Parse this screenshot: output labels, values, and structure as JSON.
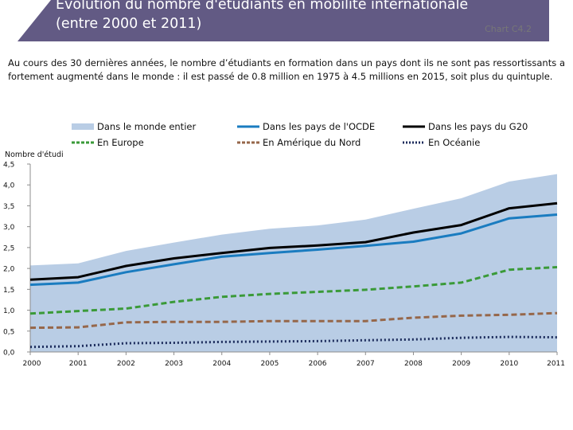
{
  "header": {
    "title": "Évolution du nombre d'étudiants en mobilité internationale (entre 2000 et 2011)",
    "chart_ref": "Chart C4.2",
    "subtitle": "Au cours des 30 dernières années, le nombre d’étudiants en formation dans un pays dont ils ne sont pas ressortissants a fortement augmenté dans le monde : il est passé de 0.8 million en 1975 à 4.5 millions en 2015, soit plus du quintuple."
  },
  "colors": {
    "banner": "#625a84",
    "world_fill": "#b9cde5",
    "oecd": "#1a7cc0",
    "g20": "#000000",
    "europe": "#3a9a38",
    "north_america": "#96674a",
    "oceania": "#1c2c5c"
  },
  "chart_data": {
    "type": "line",
    "title": "Évolution du nombre d'étudiants en mobilité internationale (entre 2000 et 2011)",
    "ylabel": "Nombre d'étudiants (en millions)",
    "ylabel_visible": "Nombre d'étudia",
    "xlabel": "",
    "x": [
      "2000",
      "2001",
      "2002",
      "2003",
      "2004",
      "2005",
      "2006",
      "2007",
      "2008",
      "2009",
      "2010",
      "2011"
    ],
    "yticks": [
      "0,0",
      "0,5",
      "1,0",
      "1,5",
      "2,0",
      "2,5",
      "3,0",
      "3,5",
      "4,0",
      "4,5"
    ],
    "ylim": [
      0,
      4.5
    ],
    "grid": false,
    "legend_position": "top",
    "series": [
      {
        "name": "Dans le monde entier",
        "style": "area",
        "values": [
          2.07,
          2.12,
          2.42,
          2.62,
          2.81,
          2.95,
          3.03,
          3.17,
          3.43,
          3.68,
          4.08,
          4.26
        ]
      },
      {
        "name": "Dans les pays de l'OCDE",
        "style": "solid",
        "values": [
          1.61,
          1.66,
          1.91,
          2.1,
          2.28,
          2.37,
          2.45,
          2.54,
          2.64,
          2.84,
          3.2,
          3.29
        ]
      },
      {
        "name": "Dans les pays du G20",
        "style": "solid",
        "values": [
          1.73,
          1.79,
          2.06,
          2.24,
          2.37,
          2.49,
          2.55,
          2.63,
          2.86,
          3.04,
          3.44,
          3.56
        ]
      },
      {
        "name": "En Europe",
        "style": "dashed",
        "values": [
          0.92,
          0.98,
          1.04,
          1.2,
          1.32,
          1.39,
          1.44,
          1.49,
          1.57,
          1.66,
          1.97,
          2.03
        ]
      },
      {
        "name": "En Amérique du Nord",
        "style": "dashed",
        "values": [
          0.58,
          0.59,
          0.71,
          0.72,
          0.72,
          0.74,
          0.74,
          0.74,
          0.82,
          0.87,
          0.89,
          0.93
        ]
      },
      {
        "name": "En Océanie",
        "style": "dotted",
        "values": [
          0.12,
          0.14,
          0.21,
          0.22,
          0.24,
          0.25,
          0.26,
          0.28,
          0.3,
          0.34,
          0.36,
          0.35
        ]
      }
    ]
  }
}
